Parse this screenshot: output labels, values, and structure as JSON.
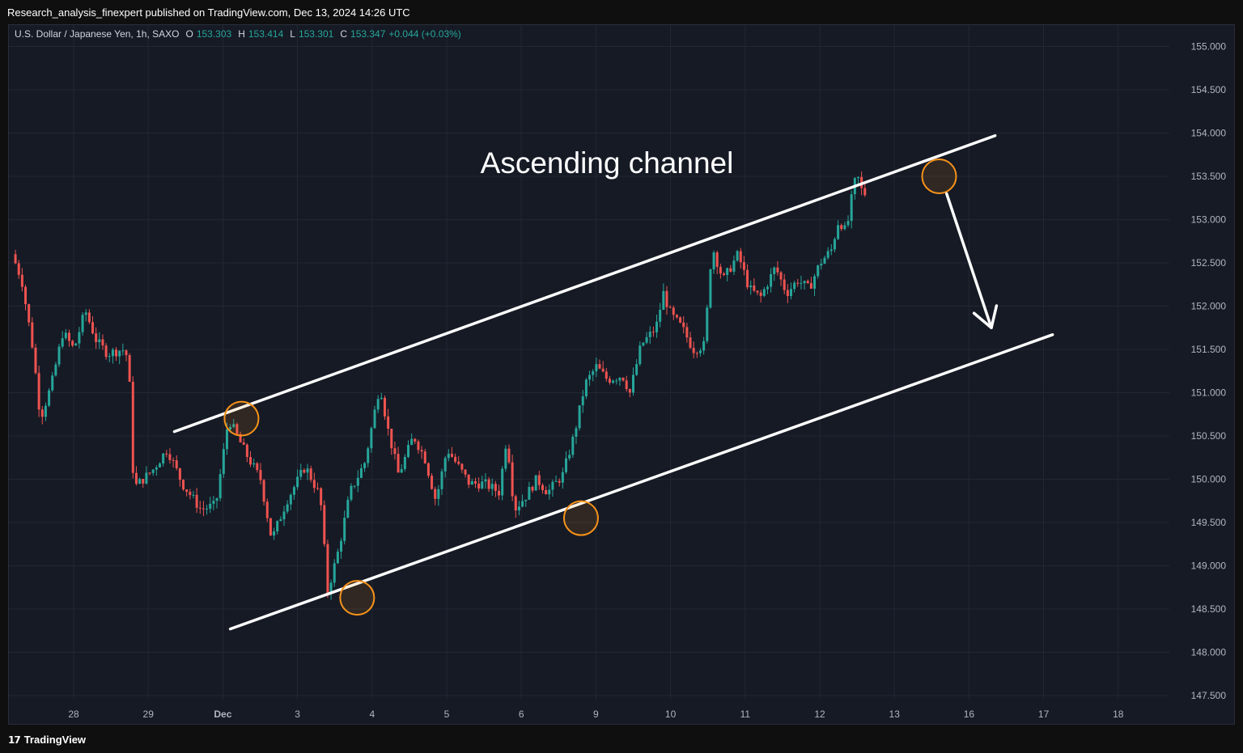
{
  "header": {
    "published": "Research_analysis_finexpert published on TradingView.com, Dec 13, 2024 14:26 UTC"
  },
  "legend": {
    "symbol": "U.S. Dollar / Japanese Yen, 1h, SAXO",
    "o_label": "O",
    "o_value": "153.303",
    "h_label": "H",
    "h_value": "153.414",
    "l_label": "L",
    "l_value": "153.301",
    "c_label": "C",
    "c_value": "153.347",
    "change": "+0.044 (+0.03%)"
  },
  "footer": {
    "brand": "TradingView",
    "logo_icon": "tradingview-logo-icon"
  },
  "colors": {
    "up": "#26a69a",
    "down": "#ef5350",
    "background": "#161a25",
    "grid": "#232733",
    "axis_text": "#b2b5be",
    "annotation": "#ffffff",
    "highlight": "#f7931a"
  },
  "chart_data": {
    "type": "candlestick",
    "title": "",
    "annotation_text": "Ascending channel",
    "y_axis": {
      "position": "right",
      "ylim": [
        147.3,
        155.3
      ],
      "ticks": [
        "147.500",
        "148.000",
        "148.500",
        "149.000",
        "149.500",
        "150.000",
        "150.500",
        "151.000",
        "151.500",
        "152.000",
        "152.500",
        "153.000",
        "153.500",
        "154.000",
        "154.500",
        "155.000"
      ]
    },
    "x_axis": {
      "ticks": [
        "28",
        "29",
        "Dec",
        "3",
        "4",
        "5",
        "6",
        "9",
        "10",
        "11",
        "12",
        "13",
        "16",
        "17",
        "18"
      ],
      "tick_days": [
        1,
        2,
        3,
        4,
        5,
        6,
        7,
        8,
        9,
        10,
        11,
        12,
        13,
        14,
        15
      ]
    },
    "grid": true,
    "price_path": [
      [
        0.22,
        152.6
      ],
      [
        0.35,
        152.3
      ],
      [
        0.5,
        151.5
      ],
      [
        0.6,
        150.7
      ],
      [
        0.75,
        151.1
      ],
      [
        0.9,
        151.7
      ],
      [
        1.05,
        151.5
      ],
      [
        1.2,
        151.95
      ],
      [
        1.35,
        151.6
      ],
      [
        1.5,
        151.45
      ],
      [
        1.7,
        151.5
      ],
      [
        1.78,
        151.4
      ],
      [
        1.85,
        149.9
      ],
      [
        2.1,
        150.1
      ],
      [
        2.3,
        150.35
      ],
      [
        2.5,
        149.95
      ],
      [
        2.75,
        149.65
      ],
      [
        2.95,
        149.7
      ],
      [
        3.12,
        150.7
      ],
      [
        3.35,
        150.3
      ],
      [
        3.55,
        150.0
      ],
      [
        3.7,
        149.3
      ],
      [
        3.9,
        149.75
      ],
      [
        4.15,
        150.15
      ],
      [
        4.35,
        149.8
      ],
      [
        4.45,
        148.7
      ],
      [
        4.6,
        149.2
      ],
      [
        4.75,
        149.85
      ],
      [
        4.95,
        150.2
      ],
      [
        5.15,
        151.1
      ],
      [
        5.25,
        150.6
      ],
      [
        5.4,
        150.05
      ],
      [
        5.6,
        150.5
      ],
      [
        5.75,
        150.25
      ],
      [
        5.9,
        149.75
      ],
      [
        6.05,
        150.35
      ],
      [
        6.2,
        150.15
      ],
      [
        6.35,
        149.95
      ],
      [
        6.55,
        149.95
      ],
      [
        6.75,
        149.85
      ],
      [
        6.85,
        150.5
      ],
      [
        6.95,
        149.65
      ],
      [
        7.1,
        149.8
      ],
      [
        7.25,
        150.0
      ],
      [
        7.4,
        149.85
      ],
      [
        7.6,
        150.05
      ],
      [
        7.75,
        150.5
      ],
      [
        7.9,
        151.1
      ],
      [
        8.05,
        151.3
      ],
      [
        8.2,
        151.15
      ],
      [
        8.4,
        151.2
      ],
      [
        8.5,
        151.0
      ],
      [
        8.65,
        151.55
      ],
      [
        8.85,
        151.75
      ],
      [
        8.95,
        152.15
      ],
      [
        9.05,
        151.9
      ],
      [
        9.2,
        151.75
      ],
      [
        9.35,
        151.5
      ],
      [
        9.5,
        151.55
      ],
      [
        9.6,
        152.7
      ],
      [
        9.75,
        152.3
      ],
      [
        9.95,
        152.6
      ],
      [
        10.1,
        152.2
      ],
      [
        10.25,
        152.1
      ],
      [
        10.45,
        152.45
      ],
      [
        10.6,
        152.15
      ],
      [
        10.75,
        152.3
      ],
      [
        10.9,
        152.2
      ],
      [
        11.05,
        152.5
      ],
      [
        11.2,
        152.65
      ],
      [
        11.3,
        153.0
      ],
      [
        11.4,
        152.85
      ],
      [
        11.5,
        153.4
      ],
      [
        11.55,
        153.5
      ],
      [
        11.62,
        153.3
      ]
    ],
    "last_close_day": 11.62,
    "channel_upper": {
      "from": [
        2.35,
        150.55
      ],
      "to": [
        13.35,
        153.97
      ]
    },
    "channel_lower": {
      "from": [
        3.1,
        148.27
      ],
      "to": [
        14.12,
        151.67
      ]
    },
    "touch_points": [
      [
        3.25,
        150.7
      ],
      [
        4.8,
        148.63
      ],
      [
        7.8,
        149.55
      ],
      [
        12.6,
        153.5
      ]
    ],
    "projection_arrow": {
      "from": [
        12.7,
        153.3
      ],
      "to": [
        13.3,
        151.75
      ]
    }
  }
}
